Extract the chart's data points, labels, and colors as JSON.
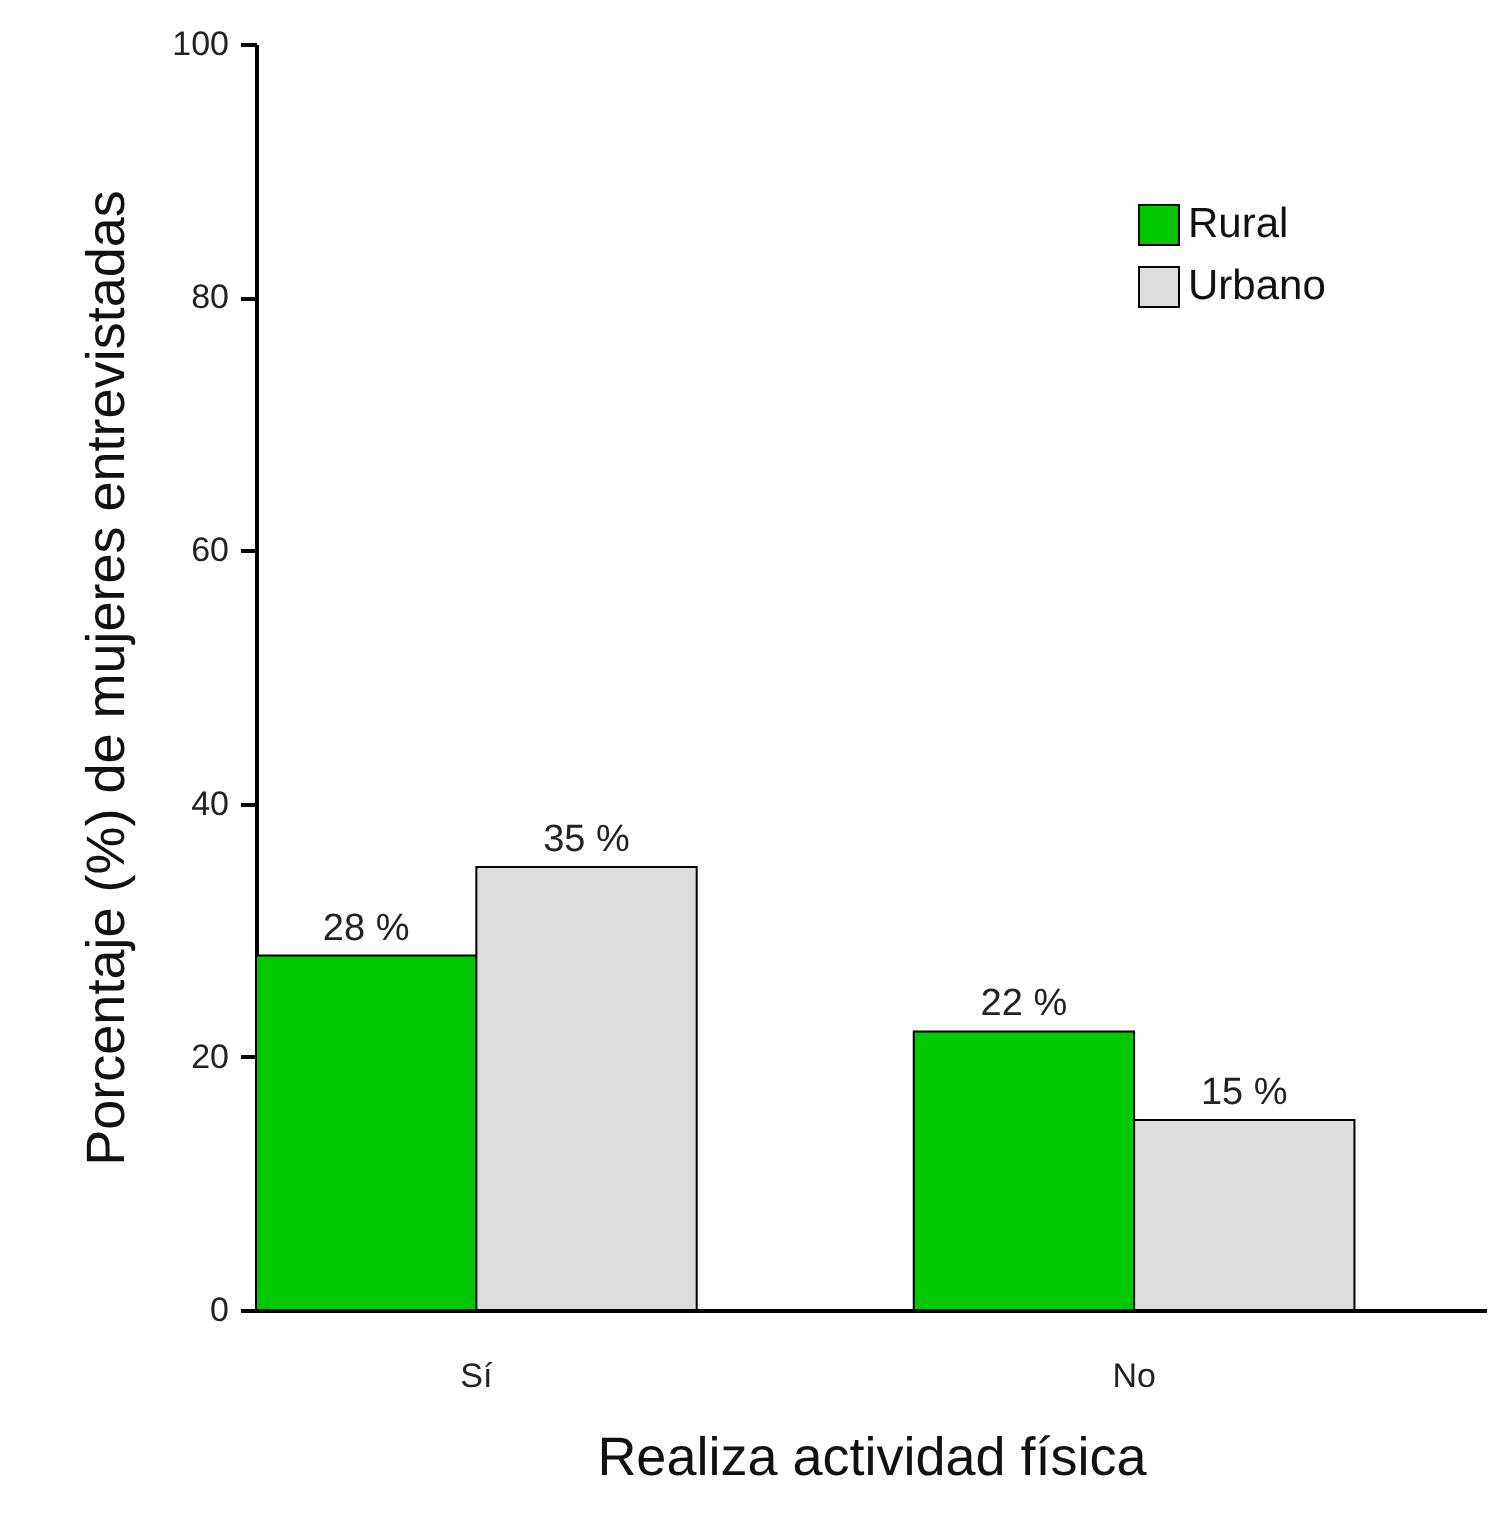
{
  "chart_data": {
    "type": "bar",
    "xlabel": "Realiza actividad física",
    "ylabel": "Porcentaje (%) de mujeres entrevistadas",
    "categories": [
      "Sí",
      "No"
    ],
    "series": [
      {
        "name": "Rural",
        "color": "#00c800",
        "values": [
          28,
          22
        ],
        "value_labels": [
          "28 %",
          "22 %"
        ]
      },
      {
        "name": "Urbano",
        "color": "#dddddd",
        "values": [
          35,
          15
        ],
        "value_labels": [
          "35 %",
          "15 %"
        ]
      }
    ],
    "ylim": [
      0,
      100
    ],
    "yticks": [
      0,
      20,
      40,
      60,
      80,
      100
    ],
    "grid": false,
    "legend": "top right"
  }
}
